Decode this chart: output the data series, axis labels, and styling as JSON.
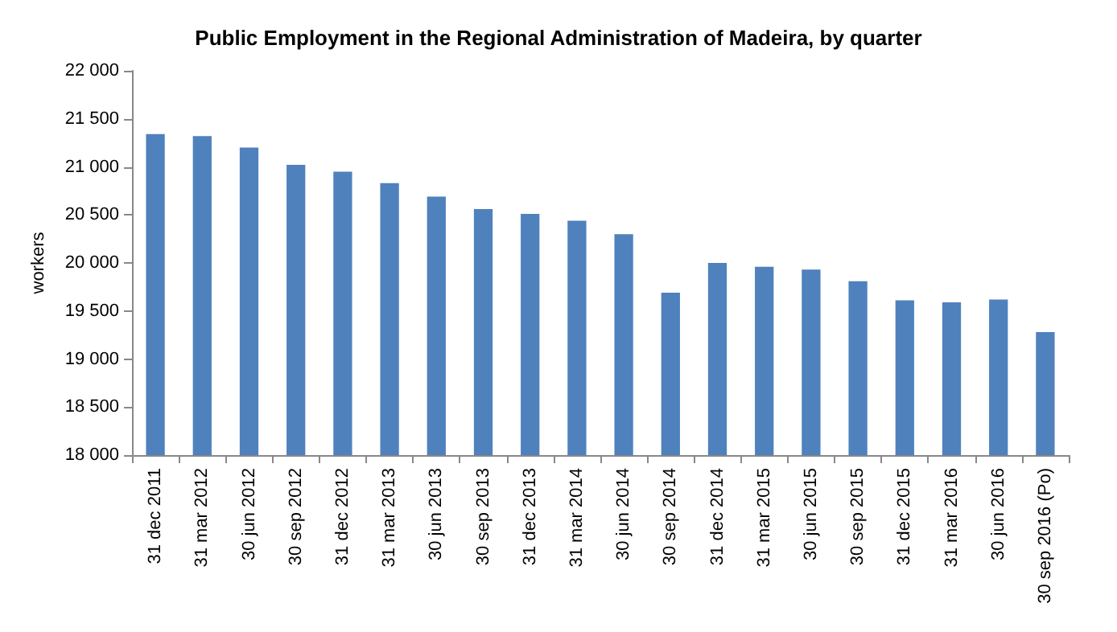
{
  "chart_data": {
    "type": "bar",
    "title": "Public Employment in the Regional Administration of Madeira, by quarter",
    "ylabel": "workers",
    "categories": [
      "31 dec 2011",
      "31 mar 2012",
      "30 jun 2012",
      "30 sep 2012",
      "31 dec 2012",
      "31 mar 2013",
      "30 jun 2013",
      "30 sep 2013",
      "31 dec 2013",
      "31 mar 2014",
      "30 jun 2014",
      "30 sep 2014",
      "31 dec 2014",
      "31 mar 2015",
      "30 jun 2015",
      "30 sep 2015",
      "31 dec 2015",
      "31 mar 2016",
      "30 jun 2016",
      "30 sep 2016 (Po)"
    ],
    "values": [
      21340,
      21320,
      21200,
      21020,
      20950,
      20830,
      20690,
      20560,
      20510,
      20440,
      20300,
      19690,
      20000,
      19960,
      19930,
      19810,
      19610,
      19590,
      19620,
      19280
    ],
    "color": "#4f81bd",
    "ylim": [
      18000,
      22000
    ],
    "yticks": [
      {
        "value": 18000,
        "label": "18 000"
      },
      {
        "value": 18500,
        "label": "18 500"
      },
      {
        "value": 19000,
        "label": "19 000"
      },
      {
        "value": 19500,
        "label": "19 500"
      },
      {
        "value": 20000,
        "label": "20 000"
      },
      {
        "value": 20500,
        "label": "20 500"
      },
      {
        "value": 21000,
        "label": "21 000"
      },
      {
        "value": 21500,
        "label": "21 500"
      },
      {
        "value": 22000,
        "label": "22 000"
      }
    ],
    "grid": false
  }
}
